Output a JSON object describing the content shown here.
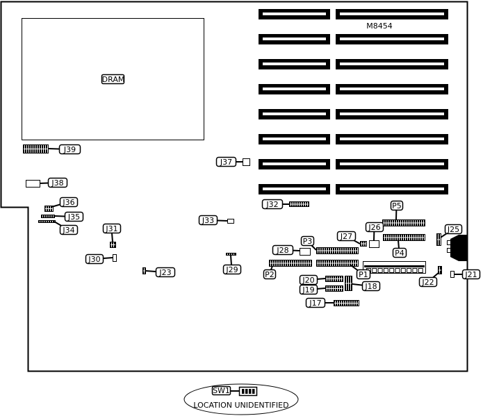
{
  "board": {
    "model": "M8454",
    "dram_label": "DRAM",
    "colors": {
      "line": "#000000",
      "background": "#ffffff"
    },
    "connectors": [
      "J17",
      "J18",
      "J19",
      "J20",
      "J21",
      "J22",
      "J23",
      "J25",
      "J26",
      "J27",
      "J28",
      "J29",
      "J30",
      "J31",
      "J32",
      "J33",
      "J34",
      "J35",
      "J36",
      "J37",
      "J38",
      "J39",
      "P1",
      "P2",
      "P3",
      "P4",
      "P5"
    ],
    "expansion_slots": 16
  },
  "legend": {
    "switch_label": "SW1",
    "location_note": "LOCATION UNIDENTIFIED"
  }
}
